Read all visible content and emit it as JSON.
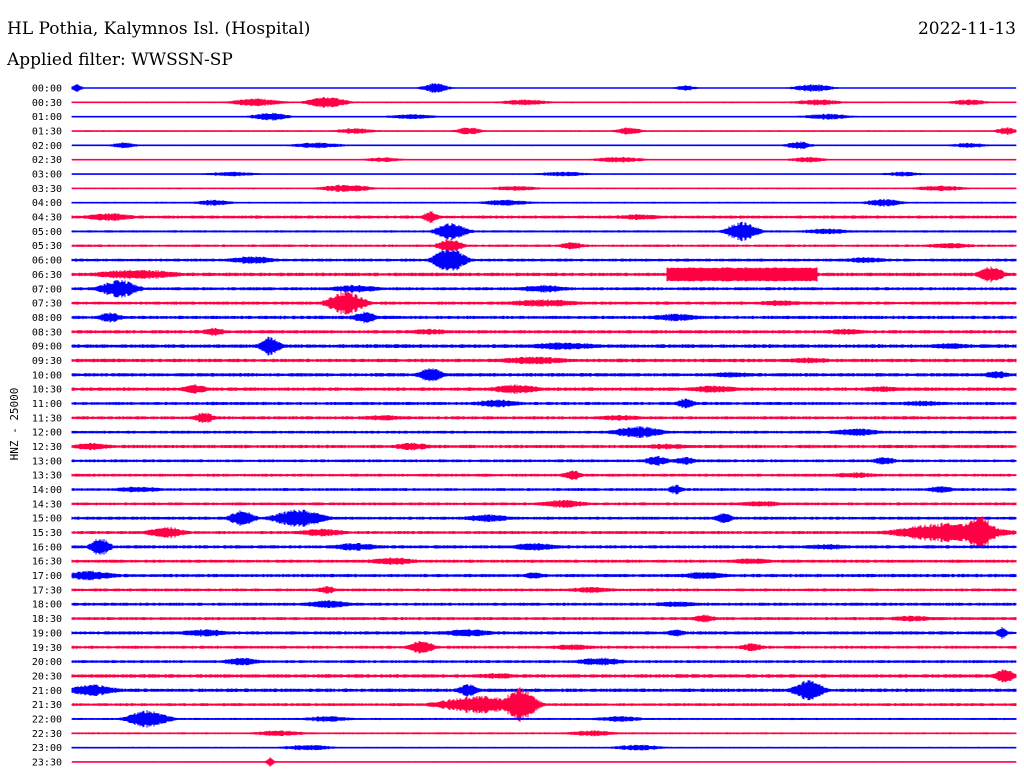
{
  "header": {
    "station": "HL Pothia, Kalymnos Isl. (Hospital)",
    "date": "2022-11-13",
    "filter": "Applied filter: WWSSN-SP"
  },
  "chart_data": {
    "type": "line",
    "ylabel": "HNZ - 25000",
    "line_colors": [
      "#0000ff",
      "#ff0044"
    ],
    "rows": [
      {
        "label": "00:00",
        "noise": 0.45,
        "events": [
          {
            "pos": 0.005,
            "amp": 4,
            "width": 0.004
          },
          {
            "pos": 0.385,
            "amp": 5,
            "width": 0.01
          },
          {
            "pos": 0.65,
            "amp": 3,
            "width": 0.008
          },
          {
            "pos": 0.785,
            "amp": 4,
            "width": 0.015
          }
        ]
      },
      {
        "label": "00:30",
        "noise": 0.8,
        "events": [
          {
            "pos": 0.195,
            "amp": 4,
            "width": 0.02
          },
          {
            "pos": 0.27,
            "amp": 6,
            "width": 0.015
          },
          {
            "pos": 0.48,
            "amp": 3,
            "width": 0.02
          },
          {
            "pos": 0.79,
            "amp": 3,
            "width": 0.02
          },
          {
            "pos": 0.95,
            "amp": 3,
            "width": 0.015
          }
        ]
      },
      {
        "label": "01:00",
        "noise": 0.7,
        "events": [
          {
            "pos": 0.21,
            "amp": 4,
            "width": 0.015
          },
          {
            "pos": 0.36,
            "amp": 2.5,
            "width": 0.02
          },
          {
            "pos": 0.8,
            "amp": 3,
            "width": 0.02
          }
        ]
      },
      {
        "label": "01:30",
        "noise": 0.7,
        "events": [
          {
            "pos": 0.3,
            "amp": 3,
            "width": 0.015
          },
          {
            "pos": 0.42,
            "amp": 4,
            "width": 0.01
          },
          {
            "pos": 0.59,
            "amp": 4,
            "width": 0.01
          },
          {
            "pos": 0.99,
            "amp": 4,
            "width": 0.008
          }
        ]
      },
      {
        "label": "02:00",
        "noise": 0.7,
        "events": [
          {
            "pos": 0.055,
            "amp": 3,
            "width": 0.01
          },
          {
            "pos": 0.26,
            "amp": 3,
            "width": 0.02
          },
          {
            "pos": 0.77,
            "amp": 4,
            "width": 0.01
          },
          {
            "pos": 0.95,
            "amp": 2.5,
            "width": 0.015
          }
        ]
      },
      {
        "label": "02:30",
        "noise": 0.6,
        "events": [
          {
            "pos": 0.33,
            "amp": 2.5,
            "width": 0.015
          },
          {
            "pos": 0.58,
            "amp": 3,
            "width": 0.02
          },
          {
            "pos": 0.78,
            "amp": 3,
            "width": 0.015
          }
        ]
      },
      {
        "label": "03:00",
        "noise": 0.6,
        "events": [
          {
            "pos": 0.17,
            "amp": 2.5,
            "width": 0.02
          },
          {
            "pos": 0.52,
            "amp": 2.5,
            "width": 0.02
          },
          {
            "pos": 0.88,
            "amp": 2.5,
            "width": 0.015
          }
        ]
      },
      {
        "label": "03:30",
        "noise": 0.8,
        "events": [
          {
            "pos": 0.29,
            "amp": 4,
            "width": 0.02
          },
          {
            "pos": 0.47,
            "amp": 2.5,
            "width": 0.02
          },
          {
            "pos": 0.92,
            "amp": 3,
            "width": 0.02
          }
        ]
      },
      {
        "label": "04:00",
        "noise": 0.9,
        "events": [
          {
            "pos": 0.15,
            "amp": 3,
            "width": 0.015
          },
          {
            "pos": 0.46,
            "amp": 3,
            "width": 0.02
          },
          {
            "pos": 0.86,
            "amp": 4,
            "width": 0.015
          }
        ]
      },
      {
        "label": "04:30",
        "noise": 1.6,
        "events": [
          {
            "pos": 0.04,
            "amp": 4,
            "width": 0.02
          },
          {
            "pos": 0.38,
            "amp": 6,
            "width": 0.006
          },
          {
            "pos": 0.6,
            "amp": 3,
            "width": 0.02
          }
        ]
      },
      {
        "label": "05:00",
        "noise": 1.2,
        "events": [
          {
            "pos": 0.402,
            "amp": 9,
            "width": 0.012
          },
          {
            "pos": 0.71,
            "amp": 10,
            "width": 0.012
          },
          {
            "pos": 0.8,
            "amp": 3,
            "width": 0.02
          }
        ]
      },
      {
        "label": "05:30",
        "noise": 1.3,
        "events": [
          {
            "pos": 0.4,
            "amp": 7,
            "width": 0.01
          },
          {
            "pos": 0.53,
            "amp": 4,
            "width": 0.01
          },
          {
            "pos": 0.93,
            "amp": 3,
            "width": 0.02
          }
        ]
      },
      {
        "label": "06:00",
        "noise": 1.5,
        "events": [
          {
            "pos": 0.4,
            "amp": 13,
            "width": 0.012
          },
          {
            "pos": 0.19,
            "amp": 4,
            "width": 0.02
          },
          {
            "pos": 0.84,
            "amp": 3,
            "width": 0.02
          }
        ]
      },
      {
        "label": "06:30",
        "noise": 1.8,
        "events": [
          {
            "pos": 0.07,
            "amp": 5,
            "width": 0.035
          },
          {
            "pos": 0.71,
            "amp": 7,
            "width": 0.08,
            "box": true
          },
          {
            "pos": 0.974,
            "amp": 8,
            "width": 0.01
          }
        ]
      },
      {
        "label": "07:00",
        "noise": 1.6,
        "events": [
          {
            "pos": 0.05,
            "amp": 9,
            "width": 0.015
          },
          {
            "pos": 0.3,
            "amp": 4,
            "width": 0.02
          },
          {
            "pos": 0.5,
            "amp": 4,
            "width": 0.02
          }
        ]
      },
      {
        "label": "07:30",
        "noise": 1.6,
        "events": [
          {
            "pos": 0.29,
            "amp": 12,
            "width": 0.014
          },
          {
            "pos": 0.5,
            "amp": 4,
            "width": 0.03
          },
          {
            "pos": 0.75,
            "amp": 3,
            "width": 0.02
          }
        ]
      },
      {
        "label": "08:00",
        "noise": 1.7,
        "events": [
          {
            "pos": 0.04,
            "amp": 5,
            "width": 0.01
          },
          {
            "pos": 0.31,
            "amp": 6,
            "width": 0.01
          },
          {
            "pos": 0.64,
            "amp": 4,
            "width": 0.02
          }
        ]
      },
      {
        "label": "08:30",
        "noise": 1.7,
        "events": [
          {
            "pos": 0.15,
            "amp": 4,
            "width": 0.01
          },
          {
            "pos": 0.38,
            "amp": 3,
            "width": 0.02
          },
          {
            "pos": 0.82,
            "amp": 3,
            "width": 0.02
          }
        ]
      },
      {
        "label": "09:00",
        "noise": 1.9,
        "events": [
          {
            "pos": 0.21,
            "amp": 10,
            "width": 0.008
          },
          {
            "pos": 0.52,
            "amp": 4,
            "width": 0.03
          },
          {
            "pos": 0.93,
            "amp": 3,
            "width": 0.02
          }
        ]
      },
      {
        "label": "09:30",
        "noise": 1.8,
        "events": [
          {
            "pos": 0.49,
            "amp": 4,
            "width": 0.03
          },
          {
            "pos": 0.78,
            "amp": 3,
            "width": 0.02
          }
        ]
      },
      {
        "label": "10:00",
        "noise": 1.8,
        "events": [
          {
            "pos": 0.38,
            "amp": 7,
            "width": 0.01
          },
          {
            "pos": 0.7,
            "amp": 3,
            "width": 0.02
          },
          {
            "pos": 0.98,
            "amp": 4,
            "width": 0.01
          }
        ]
      },
      {
        "label": "10:30",
        "noise": 1.8,
        "events": [
          {
            "pos": 0.13,
            "amp": 5,
            "width": 0.01
          },
          {
            "pos": 0.47,
            "amp": 5,
            "width": 0.02
          },
          {
            "pos": 0.68,
            "amp": 4,
            "width": 0.02
          },
          {
            "pos": 0.86,
            "amp": 3,
            "width": 0.02
          }
        ]
      },
      {
        "label": "11:00",
        "noise": 1.6,
        "events": [
          {
            "pos": 0.45,
            "amp": 4,
            "width": 0.02
          },
          {
            "pos": 0.65,
            "amp": 5,
            "width": 0.008
          },
          {
            "pos": 0.9,
            "amp": 3,
            "width": 0.02
          }
        ]
      },
      {
        "label": "11:30",
        "noise": 1.6,
        "events": [
          {
            "pos": 0.14,
            "amp": 6,
            "width": 0.008
          },
          {
            "pos": 0.33,
            "amp": 3,
            "width": 0.02
          },
          {
            "pos": 0.58,
            "amp": 3,
            "width": 0.02
          }
        ]
      },
      {
        "label": "12:00",
        "noise": 1.5,
        "events": [
          {
            "pos": 0.6,
            "amp": 6,
            "width": 0.02
          },
          {
            "pos": 0.83,
            "amp": 4,
            "width": 0.02
          }
        ]
      },
      {
        "label": "12:30",
        "noise": 1.7,
        "events": [
          {
            "pos": 0.02,
            "amp": 4,
            "width": 0.015
          },
          {
            "pos": 0.36,
            "amp": 4,
            "width": 0.015
          },
          {
            "pos": 0.63,
            "amp": 3,
            "width": 0.02
          }
        ]
      },
      {
        "label": "13:00",
        "noise": 1.5,
        "events": [
          {
            "pos": 0.62,
            "amp": 5,
            "width": 0.01
          },
          {
            "pos": 0.65,
            "amp": 4,
            "width": 0.01
          },
          {
            "pos": 0.86,
            "amp": 4,
            "width": 0.01
          }
        ]
      },
      {
        "label": "13:30",
        "noise": 1.5,
        "events": [
          {
            "pos": 0.53,
            "amp": 5,
            "width": 0.008
          },
          {
            "pos": 0.83,
            "amp": 3,
            "width": 0.02
          }
        ]
      },
      {
        "label": "14:00",
        "noise": 1.5,
        "events": [
          {
            "pos": 0.07,
            "amp": 3,
            "width": 0.02
          },
          {
            "pos": 0.64,
            "amp": 5,
            "width": 0.006
          },
          {
            "pos": 0.92,
            "amp": 4,
            "width": 0.01
          }
        ]
      },
      {
        "label": "14:30",
        "noise": 1.5,
        "events": [
          {
            "pos": 0.52,
            "amp": 4,
            "width": 0.02
          },
          {
            "pos": 0.73,
            "amp": 3,
            "width": 0.02
          }
        ]
      },
      {
        "label": "15:00",
        "noise": 1.6,
        "events": [
          {
            "pos": 0.18,
            "amp": 8,
            "width": 0.01
          },
          {
            "pos": 0.24,
            "amp": 9,
            "width": 0.02
          },
          {
            "pos": 0.44,
            "amp": 4,
            "width": 0.02
          },
          {
            "pos": 0.69,
            "amp": 5,
            "width": 0.008
          }
        ]
      },
      {
        "label": "15:30",
        "noise": 1.6,
        "events": [
          {
            "pos": 0.1,
            "amp": 6,
            "width": 0.015
          },
          {
            "pos": 0.265,
            "amp": 4,
            "width": 0.02
          },
          {
            "pos": 0.93,
            "amp": 10,
            "width": 0.04
          },
          {
            "pos": 0.96,
            "amp": 18,
            "width": 0.012
          }
        ]
      },
      {
        "label": "16:00",
        "noise": 1.7,
        "events": [
          {
            "pos": 0.03,
            "amp": 9,
            "width": 0.008
          },
          {
            "pos": 0.3,
            "amp": 4,
            "width": 0.02
          },
          {
            "pos": 0.49,
            "amp": 4,
            "width": 0.02
          },
          {
            "pos": 0.8,
            "amp": 3,
            "width": 0.02
          }
        ]
      },
      {
        "label": "16:30",
        "noise": 1.6,
        "events": [
          {
            "pos": 0.34,
            "amp": 4,
            "width": 0.02
          },
          {
            "pos": 0.72,
            "amp": 3,
            "width": 0.02
          }
        ]
      },
      {
        "label": "17:00",
        "noise": 1.7,
        "events": [
          {
            "pos": 0.02,
            "amp": 5,
            "width": 0.02
          },
          {
            "pos": 0.49,
            "amp": 4,
            "width": 0.008
          },
          {
            "pos": 0.67,
            "amp": 4,
            "width": 0.02
          }
        ]
      },
      {
        "label": "17:30",
        "noise": 1.5,
        "events": [
          {
            "pos": 0.27,
            "amp": 4,
            "width": 0.008
          },
          {
            "pos": 0.55,
            "amp": 3,
            "width": 0.02
          }
        ]
      },
      {
        "label": "18:00",
        "noise": 1.6,
        "events": [
          {
            "pos": 0.27,
            "amp": 4,
            "width": 0.02
          },
          {
            "pos": 0.64,
            "amp": 3,
            "width": 0.02
          }
        ]
      },
      {
        "label": "18:30",
        "noise": 1.6,
        "events": [
          {
            "pos": 0.67,
            "amp": 4,
            "width": 0.01
          },
          {
            "pos": 0.89,
            "amp": 3,
            "width": 0.02
          }
        ]
      },
      {
        "label": "19:00",
        "noise": 1.7,
        "events": [
          {
            "pos": 0.14,
            "amp": 4,
            "width": 0.02
          },
          {
            "pos": 0.42,
            "amp": 4,
            "width": 0.02
          },
          {
            "pos": 0.64,
            "amp": 4,
            "width": 0.008
          },
          {
            "pos": 0.985,
            "amp": 6,
            "width": 0.004
          }
        ]
      },
      {
        "label": "19:30",
        "noise": 1.5,
        "events": [
          {
            "pos": 0.37,
            "amp": 7,
            "width": 0.01
          },
          {
            "pos": 0.53,
            "amp": 3,
            "width": 0.02
          },
          {
            "pos": 0.72,
            "amp": 4,
            "width": 0.01
          }
        ]
      },
      {
        "label": "20:00",
        "noise": 1.5,
        "events": [
          {
            "pos": 0.18,
            "amp": 4,
            "width": 0.015
          },
          {
            "pos": 0.56,
            "amp": 4,
            "width": 0.02
          }
        ]
      },
      {
        "label": "20:30",
        "noise": 1.8,
        "events": [
          {
            "pos": 0.45,
            "amp": 3,
            "width": 0.02
          },
          {
            "pos": 0.988,
            "amp": 7,
            "width": 0.008
          }
        ]
      },
      {
        "label": "21:00",
        "noise": 1.8,
        "events": [
          {
            "pos": 0.02,
            "amp": 6,
            "width": 0.02
          },
          {
            "pos": 0.42,
            "amp": 7,
            "width": 0.008
          },
          {
            "pos": 0.78,
            "amp": 10,
            "width": 0.012
          }
        ]
      },
      {
        "label": "21:30",
        "noise": 1.5,
        "events": [
          {
            "pos": 0.43,
            "amp": 9,
            "width": 0.03
          },
          {
            "pos": 0.475,
            "amp": 18,
            "width": 0.012
          }
        ]
      },
      {
        "label": "22:00",
        "noise": 1.1,
        "events": [
          {
            "pos": 0.08,
            "amp": 9,
            "width": 0.016
          },
          {
            "pos": 0.27,
            "amp": 3,
            "width": 0.02
          },
          {
            "pos": 0.58,
            "amp": 3,
            "width": 0.02
          }
        ]
      },
      {
        "label": "22:30",
        "noise": 1.0,
        "events": [
          {
            "pos": 0.22,
            "amp": 3,
            "width": 0.02
          },
          {
            "pos": 0.55,
            "amp": 3,
            "width": 0.02
          }
        ]
      },
      {
        "label": "23:00",
        "noise": 0.8,
        "events": [
          {
            "pos": 0.25,
            "amp": 3,
            "width": 0.02
          },
          {
            "pos": 0.6,
            "amp": 3,
            "width": 0.02
          }
        ]
      },
      {
        "label": "23:30",
        "noise": 0.6,
        "events": [
          {
            "pos": 0.21,
            "amp": 5,
            "width": 0.003
          }
        ]
      }
    ]
  }
}
